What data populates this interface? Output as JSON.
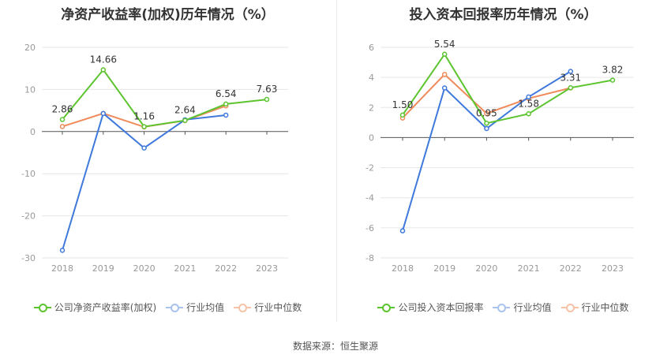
{
  "source_text": "数据来源：恒生聚源",
  "chart_data": [
    {
      "type": "line",
      "title": "净资产收益率(加权)历年情况（%）",
      "categories": [
        "2018",
        "2019",
        "2020",
        "2021",
        "2022",
        "2023"
      ],
      "ylim": [
        -30,
        20
      ],
      "yticks": [
        20,
        10,
        0,
        -10,
        -20,
        -30
      ],
      "grid": true,
      "legend_position": "bottom",
      "series": [
        {
          "name": "公司净资产收益率(加权)",
          "color": "#5cc42f",
          "values": [
            2.86,
            14.66,
            1.16,
            2.64,
            6.54,
            7.63
          ],
          "labels": [
            "2.86",
            "14.66",
            "1.16",
            "2.64",
            "6.54",
            "7.63"
          ]
        },
        {
          "name": "行业均值",
          "color": "#3f79dc",
          "values": [
            -28.2,
            4.3,
            -3.9,
            2.8,
            3.9,
            null
          ]
        },
        {
          "name": "行业中位数",
          "color": "#f08a5a",
          "values": [
            1.2,
            4.3,
            1.1,
            2.6,
            6.1,
            null
          ]
        }
      ]
    },
    {
      "type": "line",
      "title": "投入资本回报率历年情况（%）",
      "categories": [
        "2018",
        "2019",
        "2020",
        "2021",
        "2022",
        "2023"
      ],
      "ylim": [
        -8,
        6
      ],
      "yticks": [
        6,
        4,
        2,
        0,
        -2,
        -4,
        -6,
        -8
      ],
      "grid": true,
      "legend_position": "bottom",
      "series": [
        {
          "name": "公司投入资本回报率",
          "color": "#5cc42f",
          "values": [
            1.5,
            5.54,
            0.95,
            1.58,
            3.31,
            3.82
          ],
          "labels": [
            "1.50",
            "5.54",
            "0.95",
            "1.58",
            "3.31",
            "3.82"
          ]
        },
        {
          "name": "行业均值",
          "color": "#3f79dc",
          "values": [
            -6.2,
            3.3,
            0.6,
            2.7,
            4.4,
            null
          ]
        },
        {
          "name": "行业中位数",
          "color": "#f08a5a",
          "values": [
            1.3,
            4.2,
            1.6,
            2.6,
            3.3,
            null
          ]
        }
      ]
    }
  ]
}
